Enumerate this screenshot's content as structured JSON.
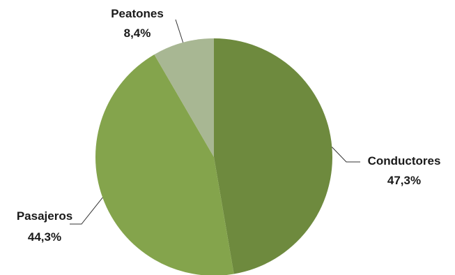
{
  "chart_data": {
    "type": "pie",
    "slices": [
      {
        "label": "Conductores",
        "value": 47.3,
        "value_label": "47,3%",
        "color": "#6e8a3e"
      },
      {
        "label": "Pasajeros",
        "value": 44.3,
        "value_label": "44,3%",
        "color": "#84a44c"
      },
      {
        "label": "Peatones",
        "value": 8.4,
        "value_label": "8,4%",
        "color": "#a8b793"
      }
    ],
    "legend": "none",
    "labels": "outside with leader lines"
  }
}
